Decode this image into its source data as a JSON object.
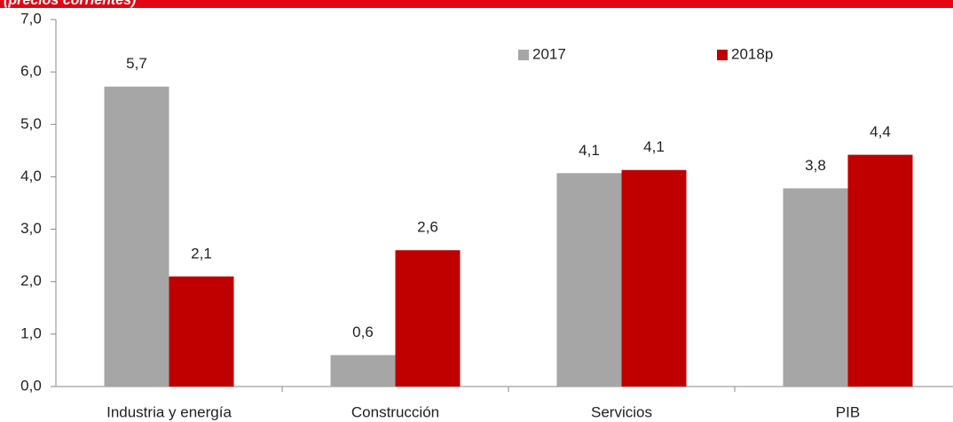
{
  "chart_data": {
    "type": "bar",
    "subtitle": "(precios corrientes)",
    "categories": [
      "Industria y energía",
      "Construcción",
      "Servicios",
      "PIB"
    ],
    "series": [
      {
        "name": "2017",
        "color": "#a6a6a6",
        "values": [
          5.72,
          0.6,
          4.07,
          3.78
        ],
        "value_labels": [
          "5,7",
          "0,6",
          "4,1",
          "3,8"
        ]
      },
      {
        "name": "2018p",
        "color": "#c00000",
        "values": [
          2.1,
          2.6,
          4.13,
          4.42
        ],
        "value_labels": [
          "2,1",
          "2,6",
          "4,1",
          "4,4"
        ]
      }
    ],
    "ylim": [
      0,
      7
    ],
    "yticks": [
      {
        "value": 0,
        "label": "0,0"
      },
      {
        "value": 1,
        "label": "1,0"
      },
      {
        "value": 2,
        "label": "2,0"
      },
      {
        "value": 3,
        "label": "3,0"
      },
      {
        "value": 4,
        "label": "4,0"
      },
      {
        "value": 5,
        "label": "5,0"
      },
      {
        "value": 6,
        "label": "6,0"
      },
      {
        "value": 7,
        "label": "7,0"
      }
    ],
    "legend": "top-right"
  }
}
